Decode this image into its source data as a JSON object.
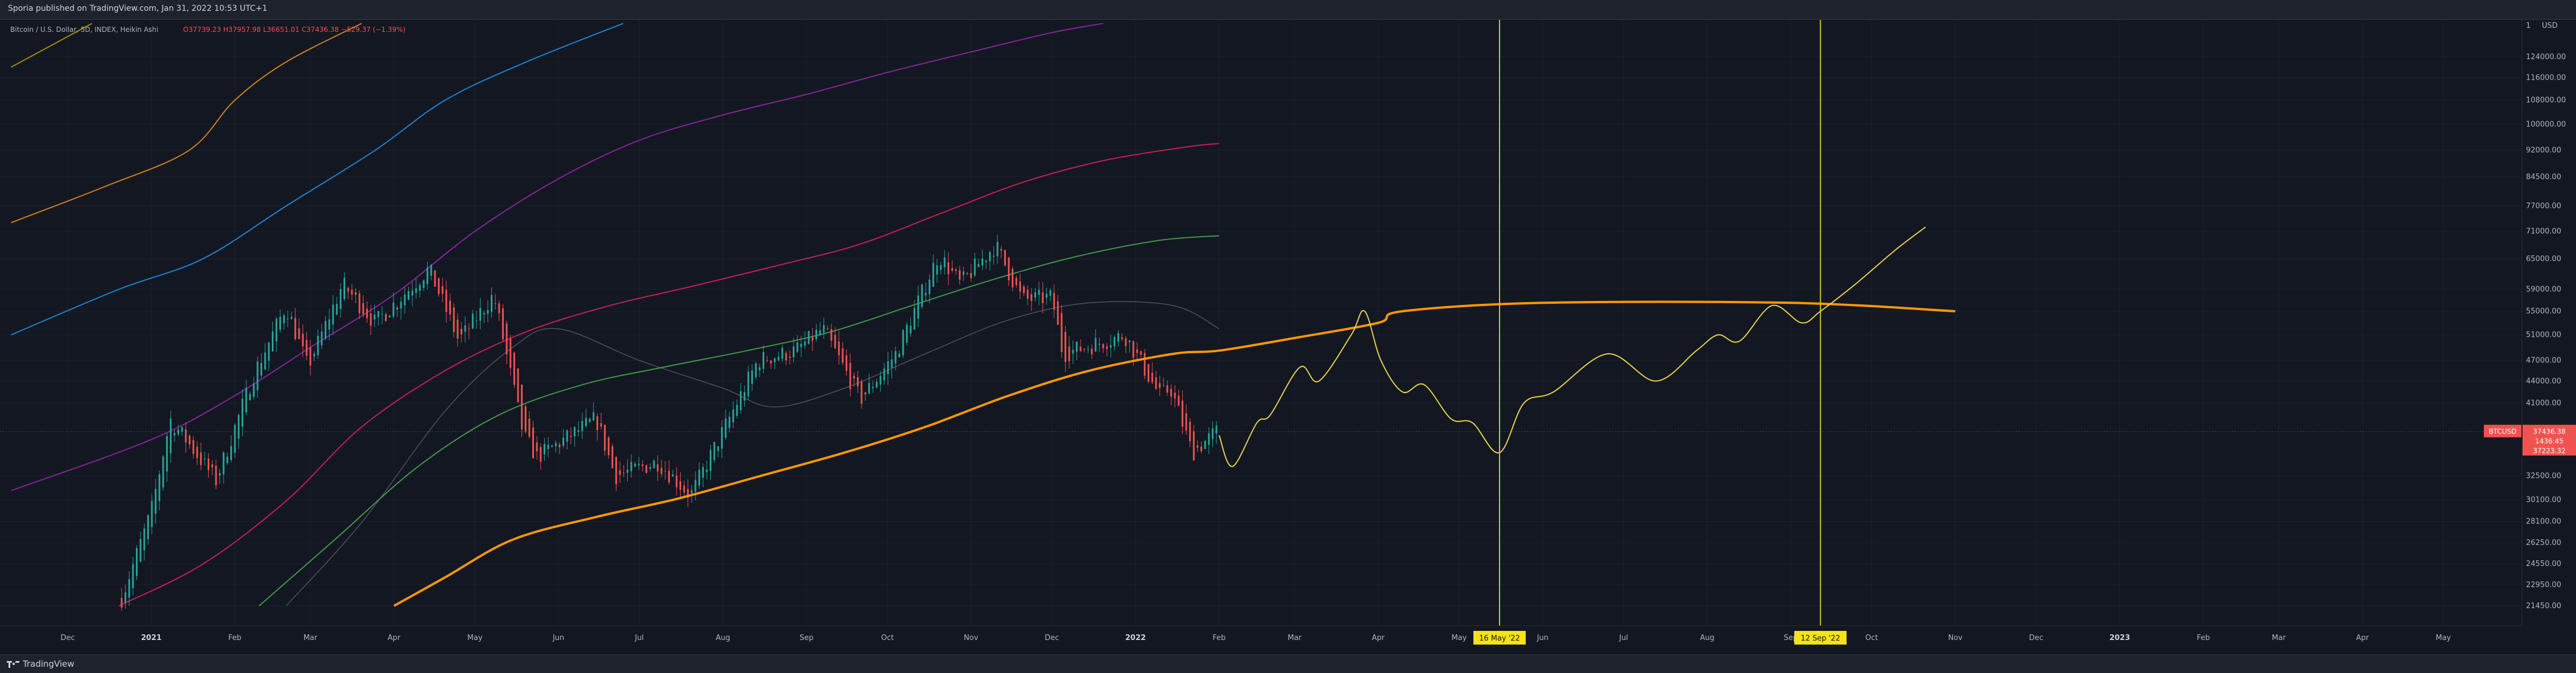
{
  "header": {
    "publish_line": "Sporia published on TradingView.com, Jan 31, 2022 10:53 UTC+1"
  },
  "footer": {
    "brand": "TradingView"
  },
  "legend": {
    "symbol_text": "Bitcoin / U.S. Dollar, 5D, INDEX, Heikin Ashi",
    "ohlc_text": "O37739.23 H37957.98 L36651.01 C37436.38 −529.37 (−1.39%)"
  },
  "colors": {
    "background": "#131722",
    "up_candle": "#26a69a",
    "down_candle": "#ef5350",
    "forecast_path": "#e8d34a",
    "long_ma": "#ff9800",
    "vertical_marker": "#d9c71d",
    "price_tag": "#ef5350",
    "band_1": "#c0a000",
    "band_2": "#f7931a",
    "band_3": "#2196f3",
    "band_4": "#9c27b0",
    "band_5": "#e91e63",
    "band_6": "#4caf50",
    "mid_ma": "#787b86"
  },
  "chart_data": {
    "type": "candlestick",
    "title": "",
    "y_scale": "log",
    "currency_label": "USD",
    "y_ticks": [
      124000,
      116000,
      108000,
      100000,
      92000,
      84500,
      77000,
      71000,
      65000,
      59000,
      55000,
      51000,
      47000,
      44000,
      41000,
      32500,
      30100,
      28100,
      26250,
      24550,
      22950,
      21450
    ],
    "y_tick_labels": [
      "124000.00",
      "116000.00",
      "108000.00",
      "100000.00",
      "92000.00",
      "84500.00",
      "77000.00",
      "71000.00",
      "65000.00",
      "59000.00",
      "55000.00",
      "51000.00",
      "47000.00",
      "44000.00",
      "41000.00",
      "32500.00",
      "30100.00",
      "28100.00",
      "26250.00",
      "24550.00",
      "22950.00",
      "21450.00"
    ],
    "y_axis_top_label": "1",
    "x_ticks": [
      {
        "label": "Dec",
        "date": "2020-12-01"
      },
      {
        "label": "2021",
        "date": "2021-01-01",
        "bold": true
      },
      {
        "label": "Feb",
        "date": "2021-02-01"
      },
      {
        "label": "Mar",
        "date": "2021-03-01"
      },
      {
        "label": "Apr",
        "date": "2021-04-01"
      },
      {
        "label": "May",
        "date": "2021-05-01"
      },
      {
        "label": "Jun",
        "date": "2021-06-01"
      },
      {
        "label": "Jul",
        "date": "2021-07-01"
      },
      {
        "label": "Aug",
        "date": "2021-08-01"
      },
      {
        "label": "Sep",
        "date": "2021-09-01"
      },
      {
        "label": "Oct",
        "date": "2021-10-01"
      },
      {
        "label": "Nov",
        "date": "2021-11-01"
      },
      {
        "label": "Dec",
        "date": "2021-12-01"
      },
      {
        "label": "2022",
        "date": "2022-01-01",
        "bold": true
      },
      {
        "label": "Feb",
        "date": "2022-02-01"
      },
      {
        "label": "Mar",
        "date": "2022-03-01"
      },
      {
        "label": "Apr",
        "date": "2022-04-01"
      },
      {
        "label": "May",
        "date": "2022-05-01"
      },
      {
        "label": "Jun",
        "date": "2022-06-01"
      },
      {
        "label": "Jul",
        "date": "2022-07-01"
      },
      {
        "label": "Aug",
        "date": "2022-08-01"
      },
      {
        "label": "Sep",
        "date": "2022-09-01"
      },
      {
        "label": "Oct",
        "date": "2022-10-01"
      },
      {
        "label": "Nov",
        "date": "2022-11-01"
      },
      {
        "label": "Dec",
        "date": "2022-12-01"
      },
      {
        "label": "2023",
        "date": "2023-01-01",
        "bold": true
      },
      {
        "label": "Feb",
        "date": "2023-02-01"
      },
      {
        "label": "Mar",
        "date": "2023-03-01"
      },
      {
        "label": "Apr",
        "date": "2023-04-01"
      },
      {
        "label": "May",
        "date": "2023-05-01"
      }
    ],
    "date_markers": [
      {
        "label": "16 May '22",
        "date": "2022-05-16"
      },
      {
        "label": "12 Sep '22",
        "date": "2022-09-12"
      }
    ],
    "last_price": {
      "symbol": "BTCUSD",
      "price": "37436.38",
      "countdown": "1436:45",
      "low": "37223.32",
      "value": 37436.38
    },
    "price_series": {
      "name": "Bitcoin / U.S. Dollar",
      "anchors": [
        [
          "2020-12-21",
          22000
        ],
        [
          "2021-01-01",
          29000
        ],
        [
          "2021-01-08",
          39000
        ],
        [
          "2021-01-15",
          36000
        ],
        [
          "2021-01-25",
          32000
        ],
        [
          "2021-02-08",
          45000
        ],
        [
          "2021-02-20",
          56000
        ],
        [
          "2021-02-28",
          46000
        ],
        [
          "2021-03-13",
          60000
        ],
        [
          "2021-03-25",
          53000
        ],
        [
          "2021-04-14",
          63000
        ],
        [
          "2021-04-25",
          50000
        ],
        [
          "2021-05-08",
          58000
        ],
        [
          "2021-05-19",
          37000
        ],
        [
          "2021-05-24",
          34500
        ],
        [
          "2021-06-15",
          39000
        ],
        [
          "2021-06-22",
          32500
        ],
        [
          "2021-07-08",
          34000
        ],
        [
          "2021-07-20",
          30500
        ],
        [
          "2021-08-14",
          47000
        ],
        [
          "2021-08-28",
          48500
        ],
        [
          "2021-09-07",
          52000
        ],
        [
          "2021-09-21",
          41500
        ],
        [
          "2021-10-04",
          48000
        ],
        [
          "2021-10-20",
          66000
        ],
        [
          "2021-10-28",
          60000
        ],
        [
          "2021-11-10",
          68000
        ],
        [
          "2021-11-20",
          57000
        ],
        [
          "2021-12-01",
          57500
        ],
        [
          "2021-12-05",
          48000
        ],
        [
          "2021-12-28",
          51000
        ],
        [
          "2022-01-10",
          42000
        ],
        [
          "2022-01-14",
          43000
        ],
        [
          "2022-01-22",
          35000
        ],
        [
          "2022-01-31",
          37436
        ]
      ]
    },
    "forecast_path": {
      "name": "",
      "points": [
        [
          "2022-02-01",
          37000
        ],
        [
          "2022-02-06",
          33500
        ],
        [
          "2022-02-15",
          38500
        ],
        [
          "2022-02-20",
          39500
        ],
        [
          "2022-03-03",
          46000
        ],
        [
          "2022-03-10",
          44000
        ],
        [
          "2022-03-22",
          51000
        ],
        [
          "2022-03-27",
          55000
        ],
        [
          "2022-04-02",
          47000
        ],
        [
          "2022-04-10",
          42500
        ],
        [
          "2022-04-18",
          43500
        ],
        [
          "2022-04-28",
          39000
        ],
        [
          "2022-05-06",
          38500
        ],
        [
          "2022-05-16",
          35000
        ],
        [
          "2022-05-25",
          41000
        ],
        [
          "2022-06-05",
          42500
        ],
        [
          "2022-06-25",
          48000
        ],
        [
          "2022-07-13",
          44000
        ],
        [
          "2022-07-28",
          48500
        ],
        [
          "2022-08-05",
          51000
        ],
        [
          "2022-08-13",
          50000
        ],
        [
          "2022-08-25",
          56000
        ],
        [
          "2022-09-05",
          53000
        ],
        [
          "2022-09-12",
          55000
        ],
        [
          "2022-09-25",
          60000
        ],
        [
          "2022-10-10",
          67000
        ],
        [
          "2022-10-21",
          72000
        ]
      ]
    },
    "long_ma": {
      "name": "",
      "points": [
        [
          "2021-04-01",
          21450
        ],
        [
          "2021-04-20",
          23500
        ],
        [
          "2021-05-15",
          26500
        ],
        [
          "2021-06-15",
          28500
        ],
        [
          "2021-07-15",
          30200
        ],
        [
          "2021-08-15",
          32500
        ],
        [
          "2021-09-15",
          35000
        ],
        [
          "2021-10-15",
          38000
        ],
        [
          "2021-11-15",
          42000
        ],
        [
          "2021-12-15",
          45500
        ],
        [
          "2022-01-15",
          48000
        ],
        [
          "2022-02-01",
          48500
        ],
        [
          "2022-03-01",
          50500
        ],
        [
          "2022-04-01",
          53000
        ],
        [
          "2022-04-10",
          55000
        ],
        [
          "2022-06-01",
          56500
        ],
        [
          "2022-09-01",
          56500
        ],
        [
          "2022-11-01",
          55000
        ]
      ]
    },
    "mid_ma": {
      "name": "",
      "points": [
        [
          "2021-02-20",
          21450
        ],
        [
          "2021-03-20",
          28000
        ],
        [
          "2021-04-20",
          40000
        ],
        [
          "2021-05-15",
          49000
        ],
        [
          "2021-06-01",
          52000
        ],
        [
          "2021-07-01",
          47000
        ],
        [
          "2021-08-01",
          43000
        ],
        [
          "2021-08-20",
          40500
        ],
        [
          "2021-09-15",
          43000
        ],
        [
          "2021-10-15",
          48000
        ],
        [
          "2021-11-15",
          53500
        ],
        [
          "2021-12-15",
          56500
        ],
        [
          "2022-01-15",
          56000
        ],
        [
          "2022-02-01",
          52000
        ]
      ]
    },
    "bands": [
      {
        "name": "",
        "color_key": "band_1",
        "points": [
          [
            "2020-11-10",
            120000
          ],
          [
            "2020-12-10",
            138000
          ]
        ]
      },
      {
        "name": "",
        "color_key": "band_2",
        "points": [
          [
            "2020-11-10",
            73000
          ],
          [
            "2020-12-15",
            82000
          ],
          [
            "2021-01-15",
            92000
          ],
          [
            "2021-02-01",
            108000
          ],
          [
            "2021-02-20",
            122000
          ],
          [
            "2021-03-20",
            138000
          ]
        ]
      },
      {
        "name": "",
        "color_key": "band_3",
        "points": [
          [
            "2020-11-10",
            51000
          ],
          [
            "2020-12-20",
            59000
          ],
          [
            "2021-01-20",
            65000
          ],
          [
            "2021-02-20",
            77000
          ],
          [
            "2021-03-25",
            92000
          ],
          [
            "2021-04-20",
            108000
          ],
          [
            "2021-05-20",
            122000
          ],
          [
            "2021-06-25",
            138000
          ]
        ]
      },
      {
        "name": "",
        "color_key": "band_4",
        "points": [
          [
            "2020-11-10",
            31000
          ],
          [
            "2021-01-01",
            36500
          ],
          [
            "2021-02-01",
            42000
          ],
          [
            "2021-03-01",
            49000
          ],
          [
            "2021-04-01",
            58000
          ],
          [
            "2021-05-01",
            71000
          ],
          [
            "2021-06-01",
            84000
          ],
          [
            "2021-07-01",
            95000
          ],
          [
            "2021-08-01",
            103000
          ],
          [
            "2021-09-01",
            110000
          ],
          [
            "2021-10-01",
            118000
          ],
          [
            "2021-11-01",
            126000
          ],
          [
            "2021-12-01",
            134000
          ],
          [
            "2021-12-20",
            138000
          ]
        ]
      },
      {
        "name": "",
        "color_key": "band_5",
        "points": [
          [
            "2020-12-20",
            21450
          ],
          [
            "2021-01-20",
            24500
          ],
          [
            "2021-02-20",
            30000
          ],
          [
            "2021-03-20",
            38000
          ],
          [
            "2021-04-20",
            45500
          ],
          [
            "2021-05-20",
            51500
          ],
          [
            "2021-06-20",
            56000
          ],
          [
            "2021-07-20",
            59500
          ],
          [
            "2021-08-20",
            63500
          ],
          [
            "2021-09-20",
            68000
          ],
          [
            "2021-10-20",
            75000
          ],
          [
            "2021-11-20",
            83000
          ],
          [
            "2021-12-20",
            89000
          ],
          [
            "2022-01-20",
            93000
          ],
          [
            "2022-02-01",
            94000
          ]
        ]
      },
      {
        "name": "",
        "color_key": "band_6",
        "points": [
          [
            "2021-02-10",
            21450
          ],
          [
            "2021-03-10",
            26500
          ],
          [
            "2021-04-10",
            33500
          ],
          [
            "2021-05-10",
            39500
          ],
          [
            "2021-06-10",
            43500
          ],
          [
            "2021-07-10",
            46000
          ],
          [
            "2021-08-10",
            48500
          ],
          [
            "2021-09-10",
            51500
          ],
          [
            "2021-10-10",
            56000
          ],
          [
            "2021-11-10",
            61000
          ],
          [
            "2021-12-10",
            65500
          ],
          [
            "2022-01-10",
            69000
          ],
          [
            "2022-02-01",
            70000
          ]
        ]
      }
    ]
  }
}
